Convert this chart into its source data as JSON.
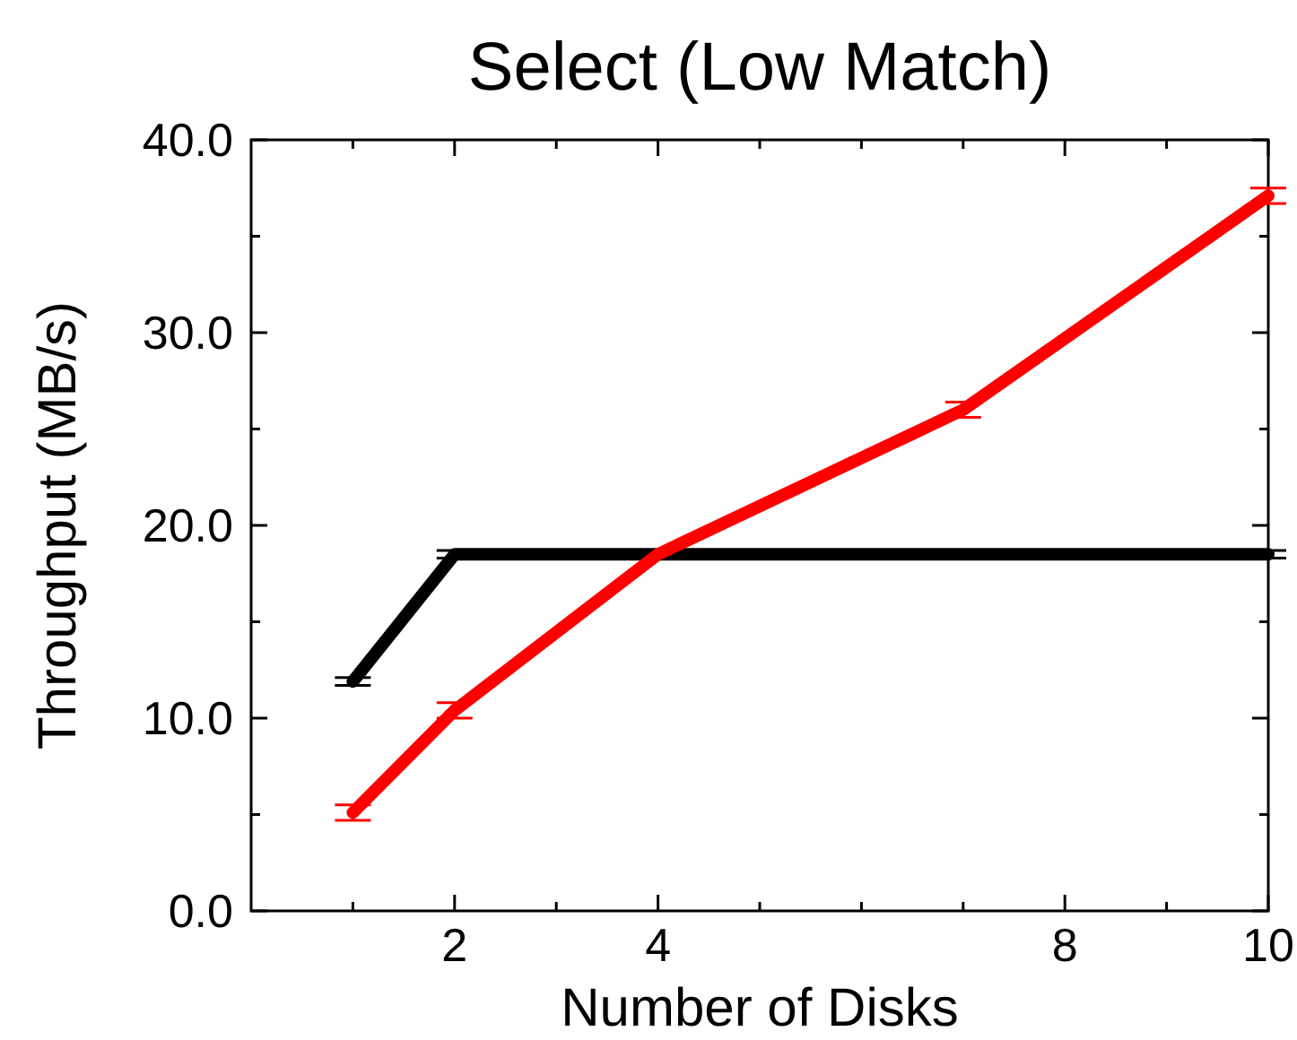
{
  "chart_data": {
    "type": "line",
    "title": "Select (Low Match)",
    "xlabel": "Number of Disks",
    "ylabel": "Throughput (MB/s)",
    "xlim": [
      0,
      10
    ],
    "ylim": [
      0,
      40
    ],
    "xticks": [
      {
        "value": 1,
        "label": null
      },
      2,
      {
        "value": 3,
        "label": null
      },
      4,
      {
        "value": 5,
        "label": null
      },
      {
        "value": 6,
        "label": null
      },
      {
        "value": 7,
        "label": null
      },
      8,
      {
        "value": 9,
        "label": null
      },
      10
    ],
    "yticks": [
      {
        "value": 0,
        "label": "0.0"
      },
      {
        "value": 5,
        "label": null
      },
      {
        "value": 10,
        "label": "10.0"
      },
      {
        "value": 15,
        "label": null
      },
      {
        "value": 20,
        "label": "20.0"
      },
      {
        "value": 25,
        "label": null
      },
      {
        "value": 30,
        "label": "30.0"
      },
      {
        "value": 35,
        "label": null
      },
      {
        "value": 40,
        "label": "40.0"
      }
    ],
    "grid": false,
    "marker": "none",
    "line_style": "solid",
    "series": [
      {
        "color": "#000000",
        "x": [
          1,
          2,
          4,
          10
        ],
        "values": [
          11.9,
          18.5,
          18.5,
          18.5
        ],
        "errors": [
          0.2,
          0.2,
          null,
          0.2
        ]
      },
      {
        "color": "#ff0000",
        "x": [
          1,
          2,
          4,
          7,
          10
        ],
        "values": [
          5.1,
          10.4,
          18.5,
          26.0,
          37.1
        ],
        "errors": [
          0.4,
          0.4,
          null,
          0.4,
          0.4
        ]
      }
    ]
  }
}
